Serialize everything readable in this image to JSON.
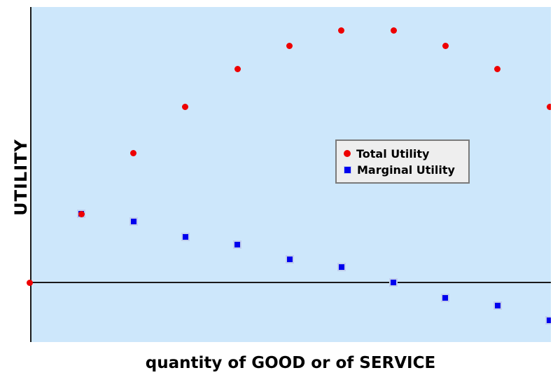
{
  "figure": {
    "ylabel": "UTILITY",
    "xlabel": "quantity of GOOD or of SERVICE"
  },
  "legend": {
    "items": [
      {
        "label": "Total Utility",
        "marker": "red-dot-icon",
        "color": "#ee0000"
      },
      {
        "label": "Marginal Utility",
        "marker": "blue-square-icon",
        "color": "#0000ee"
      }
    ]
  },
  "colors": {
    "plot_bg": "#cde7fb",
    "axis": "#1a1a1a",
    "total_utility": "#ee0000",
    "marginal_utility": "#0000ee",
    "marginal_edge": "#c2cfee",
    "legend_bg": "#eeeeee",
    "legend_border": "#7a7a7a"
  },
  "chart_data": {
    "type": "scatter",
    "title": "",
    "xlabel": "quantity of GOOD or of SERVICE",
    "ylabel": "UTILITY",
    "xlim": [
      0,
      10.05
    ],
    "ylim": [
      -7.8,
      36.1
    ],
    "grid": false,
    "tick_labels": "none",
    "zero_line": true,
    "legend_position": "inside center-right",
    "series": [
      {
        "name": "Total Utility",
        "marker": "circle",
        "color": "#ee0000",
        "x": [
          0,
          1,
          2,
          3,
          4,
          5,
          6,
          7,
          8,
          9,
          10
        ],
        "values": [
          0,
          9,
          17,
          23,
          28,
          31,
          33,
          33,
          31,
          28,
          23
        ]
      },
      {
        "name": "Marginal Utility",
        "marker": "square",
        "color": "#0000ee",
        "x": [
          1,
          2,
          3,
          4,
          5,
          6,
          7,
          8,
          9,
          10
        ],
        "values": [
          9,
          8,
          6,
          5,
          3,
          2,
          0,
          -2,
          -3,
          -5
        ]
      }
    ]
  }
}
